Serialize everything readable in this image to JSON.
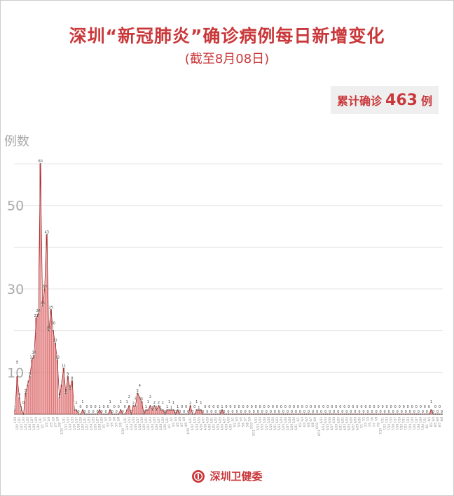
{
  "header": {
    "title": "深圳“新冠肺炎”确诊病例每日新增变化",
    "subtitle": "(截至8月08日)"
  },
  "summary": {
    "prefix": "累计确诊",
    "value": "463",
    "suffix": "例"
  },
  "footer": {
    "org": "深圳卫健委",
    "logo_icon": "shenzhen-health-commission-logo"
  },
  "colors": {
    "accent": "#c9383a",
    "bar_fill": "#f2b3b3",
    "bar_stroke": "#c9383a",
    "grid": "#e6e6e6",
    "axis_text": "#aaaaaa"
  },
  "chart_data": {
    "type": "bar",
    "ylabel": "例数",
    "ylim": [
      0,
      60
    ],
    "yticks": [
      10,
      30,
      50
    ],
    "gridlines": [
      10,
      20,
      30,
      40,
      50,
      60
    ],
    "grid": true,
    "data_labels": true,
    "categories": [
      "1/19",
      "1/20",
      "1/21",
      "1/22",
      "1/23",
      "1/24",
      "1/25",
      "1/26",
      "1/27",
      "1/28",
      "1/29",
      "1/30",
      "1/31",
      "2/1",
      "2/2",
      "2/3",
      "2/4",
      "2/5",
      "2/6",
      "2/7",
      "2/8",
      "2/9",
      "2/10",
      "2/11",
      "2/12",
      "2/13",
      "2/14",
      "2/15",
      "2/16",
      "2/17",
      "2/18",
      "2/19",
      "2/20",
      "2/21",
      "2/22",
      "2/23",
      "2/24",
      "2/25",
      "2/26",
      "2/27",
      "2/28",
      "2/29",
      "3/1",
      "3/2",
      "3/3",
      "3/4",
      "3/5",
      "3/6",
      "3/7",
      "3/8",
      "3/9",
      "3/10",
      "3/11",
      "3/12",
      "3/13",
      "3/14",
      "3/15",
      "3/16",
      "3/17",
      "3/18",
      "3/19",
      "3/20",
      "3/21",
      "3/22",
      "3/23",
      "3/24",
      "3/25",
      "3/26",
      "3/27",
      "3/28",
      "3/29",
      "3/30",
      "3/31",
      "4/1",
      "4/2",
      "4/3",
      "4/4",
      "4/5",
      "4/6",
      "4/7",
      "4/8",
      "4/9",
      "4/10",
      "4/11",
      "4/12",
      "4/13",
      "4/14",
      "4/15",
      "4/16",
      "4/17",
      "4/18",
      "4/19",
      "4/20",
      "4/21",
      "4/22",
      "4/23",
      "4/24",
      "4/25",
      "4/26",
      "4/27",
      "4/28",
      "4/29",
      "4/30",
      "5/1",
      "5/2",
      "5/3",
      "5/4",
      "5/5",
      "5/6",
      "5/7",
      "5/8",
      "5/9",
      "5/10",
      "5/11",
      "5/12",
      "5/13",
      "5/14",
      "5/15",
      "5/16",
      "5/17",
      "5/18",
      "5/19",
      "5/20",
      "5/21",
      "5/22",
      "5/23",
      "5/24",
      "5/25",
      "5/26",
      "5/27",
      "5/28",
      "5/29",
      "5/30",
      "5/31",
      "6/1",
      "6/2",
      "6/3",
      "6/4",
      "6/5",
      "6/6",
      "6/7",
      "6/8",
      "6/9",
      "6/10",
      "6/11",
      "6/12",
      "6/13",
      "6/14",
      "6/15",
      "6/16",
      "6/17",
      "6/18",
      "6/19",
      "6/20",
      "6/21",
      "6/22",
      "6/23",
      "6/24",
      "6/25",
      "6/26",
      "6/27",
      "6/28",
      "6/29",
      "6/30",
      "7/1",
      "7/2",
      "7/3",
      "7/4",
      "7/5",
      "7/6",
      "7/7",
      "7/8",
      "7/9",
      "7/10",
      "7/11",
      "7/12",
      "7/13",
      "7/14",
      "7/15",
      "7/16",
      "7/17",
      "7/18",
      "7/19",
      "7/20",
      "7/21",
      "7/22",
      "7/23",
      "7/24",
      "7/25",
      "7/26",
      "7/27",
      "7/28",
      "7/29",
      "7/30",
      "7/31",
      "8/1",
      "8/2",
      "8/3",
      "8/4",
      "8/5",
      "8/6",
      "8/7",
      "8/8"
    ],
    "values": [
      1,
      9,
      4,
      1,
      0,
      5,
      7,
      9,
      13,
      14,
      23,
      24,
      60,
      26,
      30,
      43,
      20,
      25,
      20,
      17,
      13,
      4,
      7,
      11,
      5,
      9,
      6,
      8,
      1,
      1,
      0,
      0,
      1,
      0,
      0,
      0,
      0,
      0,
      0,
      0,
      1,
      0,
      0,
      0,
      0,
      1,
      0,
      0,
      0,
      0,
      1,
      0,
      0,
      1,
      2,
      0,
      2,
      2,
      5,
      4,
      3,
      0,
      1,
      1,
      2,
      1,
      2,
      1,
      2,
      1,
      1,
      0,
      1,
      1,
      1,
      1,
      0,
      1,
      0,
      0,
      0,
      0,
      0,
      2,
      0,
      0,
      1,
      1,
      1,
      0,
      0,
      0,
      0,
      0,
      0,
      0,
      0,
      0,
      1,
      0,
      0,
      0,
      0,
      0,
      0,
      0,
      0,
      0,
      0,
      0,
      0,
      0,
      0,
      0,
      0,
      0,
      0,
      0,
      0,
      0,
      0,
      0,
      0,
      0,
      0,
      0,
      0,
      0,
      0,
      0,
      0,
      0,
      0,
      0,
      0,
      0,
      0,
      0,
      0,
      0,
      0,
      0,
      0,
      0,
      0,
      0,
      0,
      0,
      0,
      0,
      0,
      0,
      0,
      0,
      0,
      0,
      0,
      0,
      0,
      0,
      0,
      0,
      0,
      0,
      0,
      0,
      0,
      0,
      0,
      0,
      0,
      0,
      0,
      0,
      0,
      0,
      0,
      0,
      0,
      0,
      0,
      0,
      0,
      0,
      0,
      0,
      0,
      0,
      0,
      0,
      0,
      0,
      0,
      0,
      0,
      0,
      0,
      1,
      0,
      0,
      0,
      0,
      0
    ]
  }
}
